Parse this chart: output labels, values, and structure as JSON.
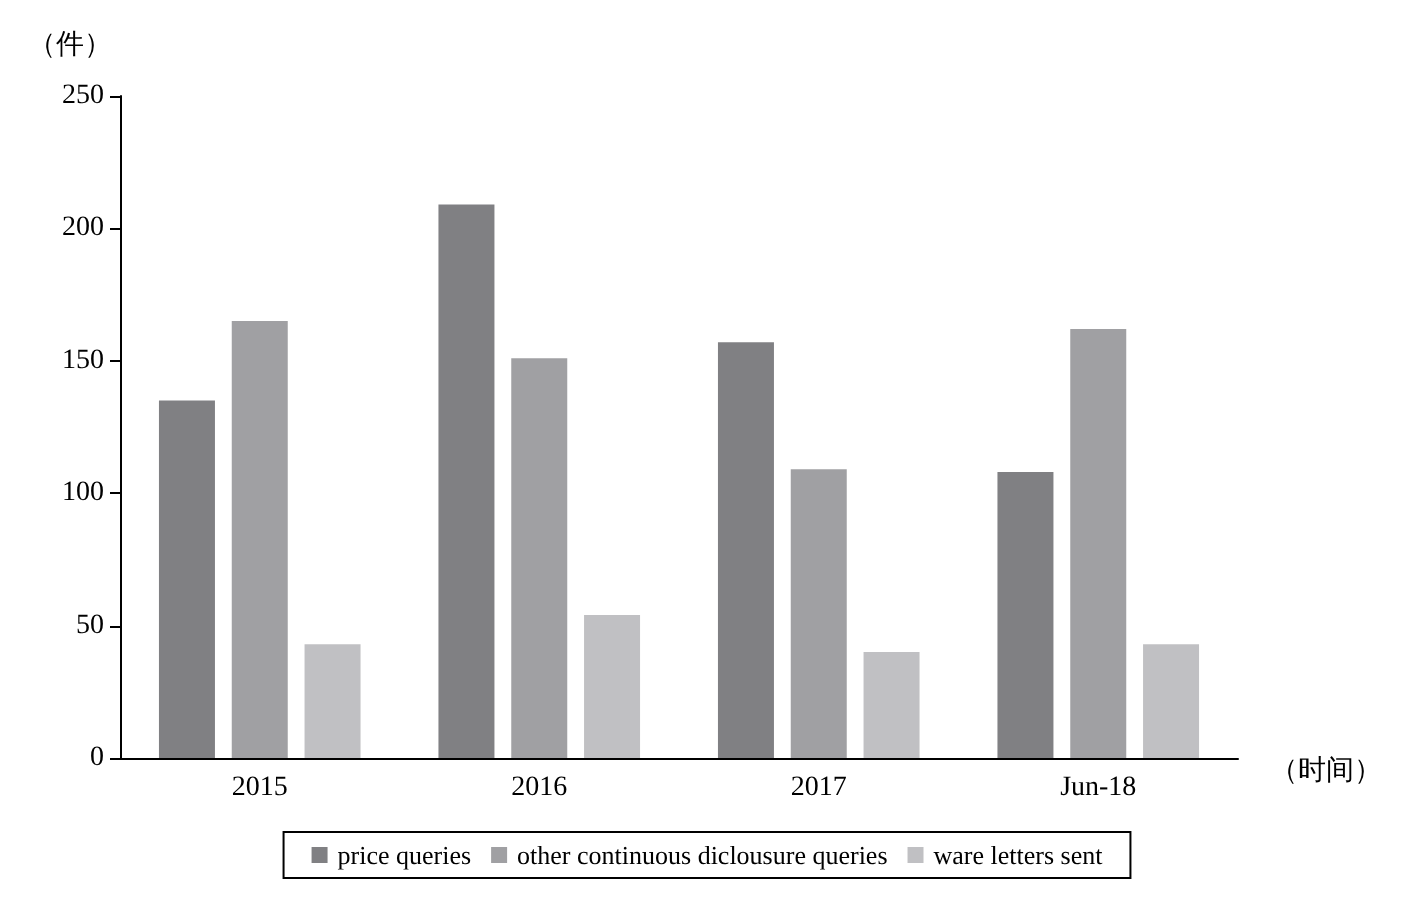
{
  "chart_data": {
    "type": "bar",
    "ylabel": "（件）",
    "xlabel": "（时间）",
    "categories": [
      "2015",
      "2016",
      "2017",
      "Jun-18"
    ],
    "series": [
      {
        "name": "price queries",
        "color": "#808083",
        "values": [
          135,
          209,
          157,
          108
        ]
      },
      {
        "name": "other continuous diclousure queries",
        "color": "#a0a0a3",
        "values": [
          165,
          151,
          109,
          162
        ]
      },
      {
        "name": "ware letters sent",
        "color": "#c0c0c3",
        "values": [
          43,
          54,
          40,
          43
        ]
      }
    ],
    "ylim": [
      0,
      250
    ],
    "yticks": [
      0,
      50,
      100,
      150,
      200,
      250
    ],
    "grid": false,
    "legend": "bottom"
  }
}
